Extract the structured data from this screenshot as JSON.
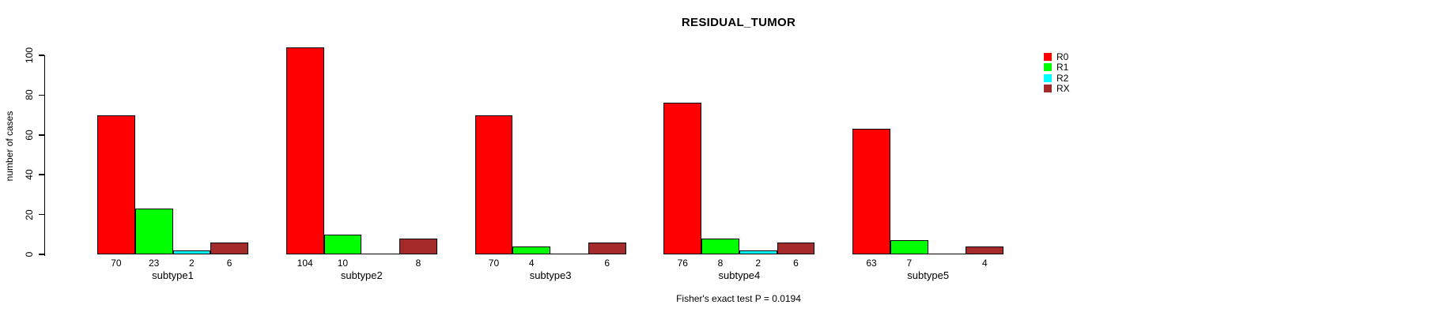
{
  "title": "RESIDUAL_TUMOR",
  "footer": "Fisher's exact test P = 0.0194",
  "legend": {
    "position": "right",
    "entries": [
      {
        "label": "R0",
        "color": "#FF0000"
      },
      {
        "label": "R1",
        "color": "#00FF00"
      },
      {
        "label": "R2",
        "color": "#00FFFF"
      },
      {
        "label": "RX",
        "color": "#A52A2A"
      }
    ]
  },
  "chart_data": {
    "type": "bar",
    "title": "RESIDUAL_TUMOR",
    "xlabel": "",
    "ylabel": "number of cases",
    "categories": [
      "subtype1",
      "subtype2",
      "subtype3",
      "subtype4",
      "subtype5"
    ],
    "series": [
      {
        "name": "R0",
        "color": "#FF0000",
        "values": [
          70,
          104,
          70,
          76,
          63
        ]
      },
      {
        "name": "R1",
        "color": "#00FF00",
        "values": [
          23,
          10,
          4,
          8,
          7
        ]
      },
      {
        "name": "R2",
        "color": "#00FFFF",
        "values": [
          2,
          0,
          0,
          2,
          0
        ]
      },
      {
        "name": "RX",
        "color": "#A52A2A",
        "values": [
          6,
          8,
          6,
          6,
          4
        ]
      }
    ],
    "yticks": [
      0,
      20,
      40,
      60,
      80,
      100
    ],
    "ylim": [
      0,
      100
    ],
    "grid": false,
    "legend_position": "right",
    "bar_value_labels": "shown under each bar, hidden for zero values",
    "annotation": "Fisher's exact test P = 0.0194",
    "axis_color": "#000000"
  }
}
